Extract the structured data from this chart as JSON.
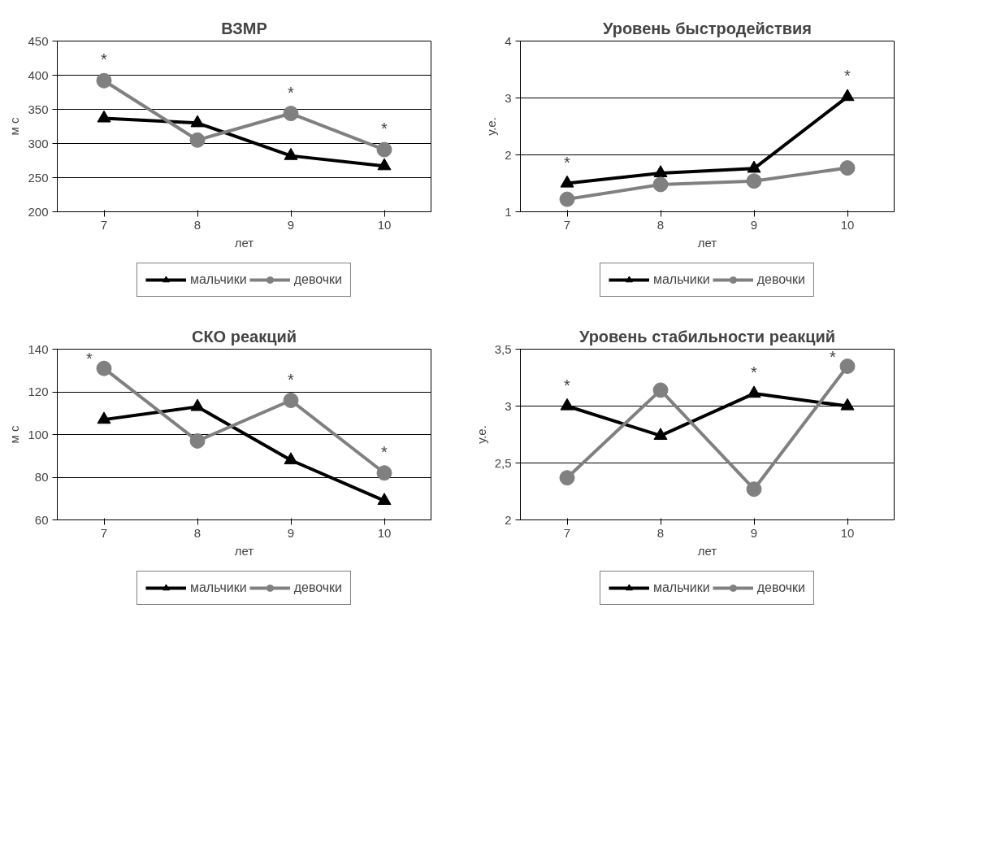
{
  "chart_data": [
    {
      "type": "line",
      "title": "ВЗМР",
      "xlabel": "лет",
      "ylabel": "м с",
      "categories": [
        "7",
        "8",
        "9",
        "10"
      ],
      "ylim": [
        200,
        450
      ],
      "yticks": [
        200,
        250,
        300,
        350,
        400,
        450
      ],
      "grid": "y",
      "legend": "bottom",
      "series": [
        {
          "name": "мальчики",
          "color": "#000000",
          "marker": "triangle",
          "values": [
            337,
            330,
            282,
            267
          ]
        },
        {
          "name": "девочки",
          "color": "#808080",
          "marker": "circle",
          "values": [
            392,
            305,
            344,
            291
          ]
        }
      ],
      "annotations": [
        {
          "text": "*",
          "x": "7",
          "y": 392
        },
        {
          "text": "*",
          "x": "9",
          "y": 344
        },
        {
          "text": "*",
          "x": "10",
          "y": 291
        }
      ]
    },
    {
      "type": "line",
      "title": "Уровень быстродействия",
      "xlabel": "лет",
      "ylabel": "у.е.",
      "categories": [
        "7",
        "8",
        "9",
        "10"
      ],
      "ylim": [
        1,
        4
      ],
      "yticks": [
        1,
        2,
        3,
        4
      ],
      "grid": "y",
      "legend": "bottom",
      "series": [
        {
          "name": "мальчики",
          "color": "#000000",
          "marker": "triangle",
          "values": [
            1.5,
            1.68,
            1.76,
            3.02
          ]
        },
        {
          "name": "девочки",
          "color": "#808080",
          "marker": "circle",
          "values": [
            1.22,
            1.48,
            1.54,
            1.77
          ]
        }
      ],
      "annotations": [
        {
          "text": "*",
          "x": "7",
          "y": 1.5
        },
        {
          "text": "*",
          "x": "10",
          "y": 3.02
        }
      ]
    },
    {
      "type": "line",
      "title": "СКО реакций",
      "xlabel": "лет",
      "ylabel": "м с",
      "categories": [
        "7",
        "8",
        "9",
        "10"
      ],
      "ylim": [
        60,
        140
      ],
      "yticks": [
        60,
        80,
        100,
        120,
        140
      ],
      "grid": "y",
      "legend": "bottom",
      "series": [
        {
          "name": "мальчики",
          "color": "#000000",
          "marker": "triangle",
          "values": [
            107,
            113,
            88,
            69
          ]
        },
        {
          "name": "девочки",
          "color": "#808080",
          "marker": "circle",
          "values": [
            131,
            97,
            116,
            82
          ]
        }
      ],
      "annotations": [
        {
          "text": "*",
          "x": "7",
          "y": 131
        },
        {
          "text": "*",
          "x": "9",
          "y": 116
        },
        {
          "text": "*",
          "x": "10",
          "y": 82
        }
      ]
    },
    {
      "type": "line",
      "title": "Уровень стабильности реакций",
      "xlabel": "лет",
      "ylabel": "у.е.",
      "categories": [
        "7",
        "8",
        "9",
        "10"
      ],
      "ylim": [
        2,
        3.5
      ],
      "yticks": [
        2,
        {
          "value": 2.5,
          "label": "2,5"
        },
        3,
        {
          "value": 3.5,
          "label": "3,5"
        }
      ],
      "grid": "y",
      "legend": "bottom",
      "series": [
        {
          "name": "мальчики",
          "color": "#000000",
          "marker": "triangle",
          "values": [
            3.0,
            2.74,
            3.11,
            3.0
          ]
        },
        {
          "name": "девочки",
          "color": "#808080",
          "marker": "circle",
          "values": [
            2.37,
            3.14,
            2.27,
            3.35
          ]
        }
      ],
      "annotations": [
        {
          "text": "*",
          "x": "7",
          "y": 3.0
        },
        {
          "text": "*",
          "x": "9",
          "y": 3.11
        },
        {
          "text": "*",
          "x": "10",
          "y": 3.35
        }
      ]
    }
  ]
}
